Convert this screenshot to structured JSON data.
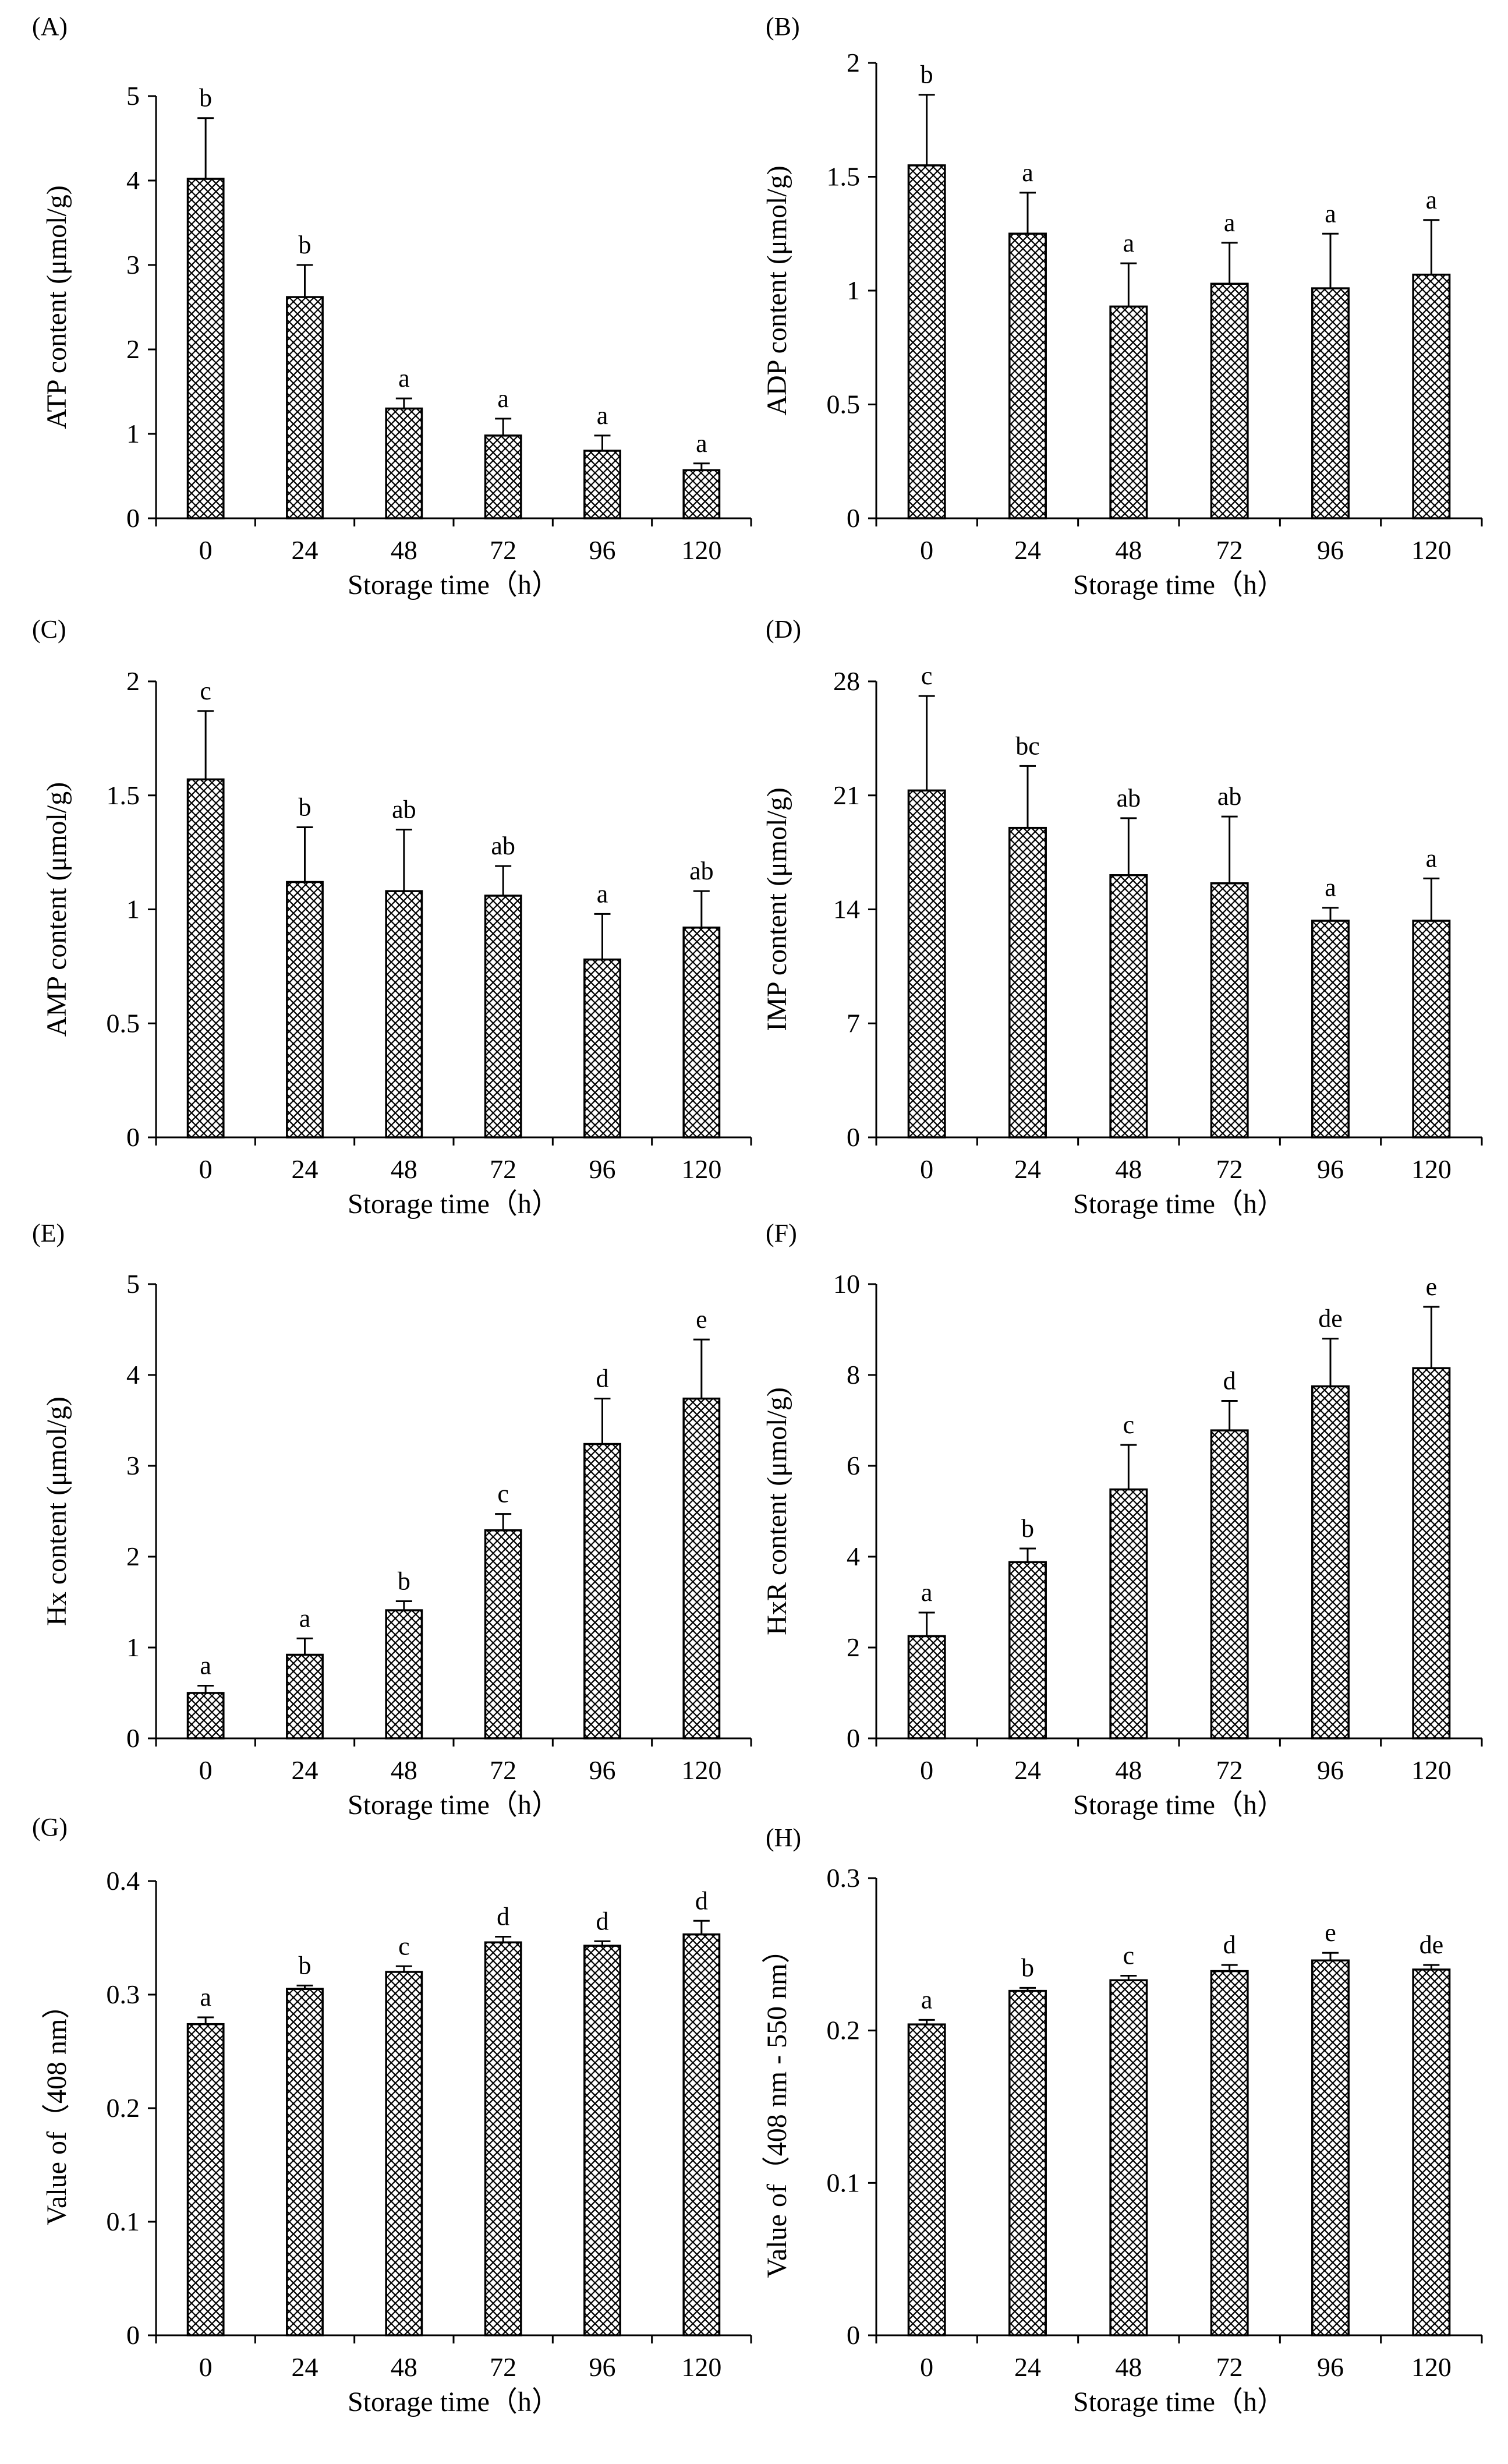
{
  "chart_data": [
    {
      "id": "A",
      "panel_label": "(A)",
      "type": "bar",
      "categories": [
        "0",
        "24",
        "48",
        "72",
        "96",
        "120"
      ],
      "values": [
        4.02,
        2.62,
        1.3,
        0.98,
        0.8,
        0.57
      ],
      "errors": [
        0.72,
        0.38,
        0.12,
        0.2,
        0.18,
        0.08
      ],
      "significance": [
        "b",
        "b",
        "a",
        "a",
        "a",
        "a"
      ],
      "xlabel": "Storage time（h）",
      "ylabel": "ATP content (μmol/g)",
      "ylim": [
        0,
        5
      ],
      "yticks": [
        0,
        1,
        2,
        3,
        4,
        5
      ],
      "ytick_labels": [
        "0",
        "1",
        "2",
        "3",
        "4",
        "5"
      ]
    },
    {
      "id": "B",
      "panel_label": "(B)",
      "type": "bar",
      "categories": [
        "0",
        "24",
        "48",
        "72",
        "96",
        "120"
      ],
      "values": [
        1.55,
        1.25,
        0.93,
        1.03,
        1.01,
        1.07
      ],
      "errors": [
        0.31,
        0.18,
        0.19,
        0.18,
        0.24,
        0.24
      ],
      "significance": [
        "b",
        "a",
        "a",
        "a",
        "a",
        "a"
      ],
      "xlabel": "Storage time（h）",
      "ylabel": "ADP content (μmol/g)",
      "ylim": [
        0,
        2
      ],
      "yticks": [
        0,
        0.5,
        1,
        1.5,
        2
      ],
      "ytick_labels": [
        "0",
        "0.5",
        "1",
        "1.5",
        "2"
      ]
    },
    {
      "id": "C",
      "panel_label": "(C)",
      "type": "bar",
      "categories": [
        "0",
        "24",
        "48",
        "72",
        "96",
        "120"
      ],
      "values": [
        1.57,
        1.12,
        1.08,
        1.06,
        0.78,
        0.92
      ],
      "errors": [
        0.3,
        0.24,
        0.27,
        0.13,
        0.2,
        0.16
      ],
      "significance": [
        "c",
        "b",
        "ab",
        "ab",
        "a",
        "ab"
      ],
      "xlabel": "Storage time（h）",
      "ylabel": "AMP content (μmol/g)",
      "ylim": [
        0,
        2
      ],
      "yticks": [
        0,
        0.5,
        1,
        1.5,
        2
      ],
      "ytick_labels": [
        "0",
        "0.5",
        "1",
        "1.5",
        "2"
      ]
    },
    {
      "id": "D",
      "panel_label": "(D)",
      "type": "bar",
      "categories": [
        "0",
        "24",
        "48",
        "72",
        "96",
        "120"
      ],
      "values": [
        21.3,
        19.0,
        16.1,
        15.6,
        13.3,
        13.3
      ],
      "errors": [
        5.8,
        3.8,
        3.5,
        4.1,
        0.8,
        2.6
      ],
      "significance": [
        "c",
        "bc",
        "ab",
        "ab",
        "a",
        "a"
      ],
      "xlabel": "Storage time（h）",
      "ylabel": "IMP content (μmol/g)",
      "ylim": [
        0,
        28
      ],
      "yticks": [
        0,
        7,
        14,
        21,
        28
      ],
      "ytick_labels": [
        "0",
        "7",
        "14",
        "21",
        "28"
      ]
    },
    {
      "id": "E",
      "panel_label": "(E)",
      "type": "bar",
      "categories": [
        "0",
        "24",
        "48",
        "72",
        "96",
        "120"
      ],
      "values": [
        0.5,
        0.92,
        1.41,
        2.29,
        3.24,
        3.74
      ],
      "errors": [
        0.08,
        0.18,
        0.1,
        0.18,
        0.5,
        0.65
      ],
      "significance": [
        "a",
        "a",
        "b",
        "c",
        "d",
        "e"
      ],
      "xlabel": "Storage time（h）",
      "ylabel": "Hx content (μmol/g)",
      "ylim": [
        0,
        5
      ],
      "yticks": [
        0,
        1,
        2,
        3,
        4,
        5
      ],
      "ytick_labels": [
        "0",
        "1",
        "2",
        "3",
        "4",
        "5"
      ]
    },
    {
      "id": "F",
      "panel_label": "(F)",
      "type": "bar",
      "categories": [
        "0",
        "24",
        "48",
        "72",
        "96",
        "120"
      ],
      "values": [
        2.25,
        3.88,
        5.48,
        6.78,
        7.75,
        8.15
      ],
      "errors": [
        0.52,
        0.3,
        0.98,
        0.65,
        1.05,
        1.35
      ],
      "significance": [
        "a",
        "b",
        "c",
        "d",
        "de",
        "e"
      ],
      "xlabel": "Storage time（h）",
      "ylabel": "HxR content (μmol/g)",
      "ylim": [
        0,
        10
      ],
      "yticks": [
        0,
        2,
        4,
        6,
        8,
        10
      ],
      "ytick_labels": [
        "0",
        "2",
        "4",
        "6",
        "8",
        "10"
      ]
    },
    {
      "id": "G",
      "panel_label": "(G)",
      "type": "bar",
      "categories": [
        "0",
        "24",
        "48",
        "72",
        "96",
        "120"
      ],
      "values": [
        0.274,
        0.305,
        0.32,
        0.346,
        0.343,
        0.353
      ],
      "errors": [
        0.006,
        0.003,
        0.005,
        0.005,
        0.004,
        0.012
      ],
      "significance": [
        "a",
        "b",
        "c",
        "d",
        "d",
        "d"
      ],
      "xlabel": "Storage time（h）",
      "ylabel": "Value of（408 nm）",
      "ylim": [
        0,
        0.4
      ],
      "yticks": [
        0,
        0.1,
        0.2,
        0.3,
        0.4
      ],
      "ytick_labels": [
        "0",
        "0.1",
        "0.2",
        "0.3",
        "0.4"
      ]
    },
    {
      "id": "H",
      "panel_label": "(H)",
      "type": "bar",
      "categories": [
        "0",
        "24",
        "48",
        "72",
        "96",
        "120"
      ],
      "values": [
        0.204,
        0.226,
        0.233,
        0.239,
        0.246,
        0.24
      ],
      "errors": [
        0.003,
        0.002,
        0.003,
        0.004,
        0.005,
        0.003
      ],
      "significance": [
        "a",
        "b",
        "c",
        "d",
        "e",
        "de"
      ],
      "xlabel": "Storage time（h）",
      "ylabel": "Value of（408 nm - 550 nm）",
      "ylim": [
        0,
        0.3
      ],
      "yticks": [
        0,
        0.1,
        0.2,
        0.3
      ],
      "ytick_labels": [
        "0",
        "0.1",
        "0.2",
        "0.3"
      ]
    }
  ]
}
